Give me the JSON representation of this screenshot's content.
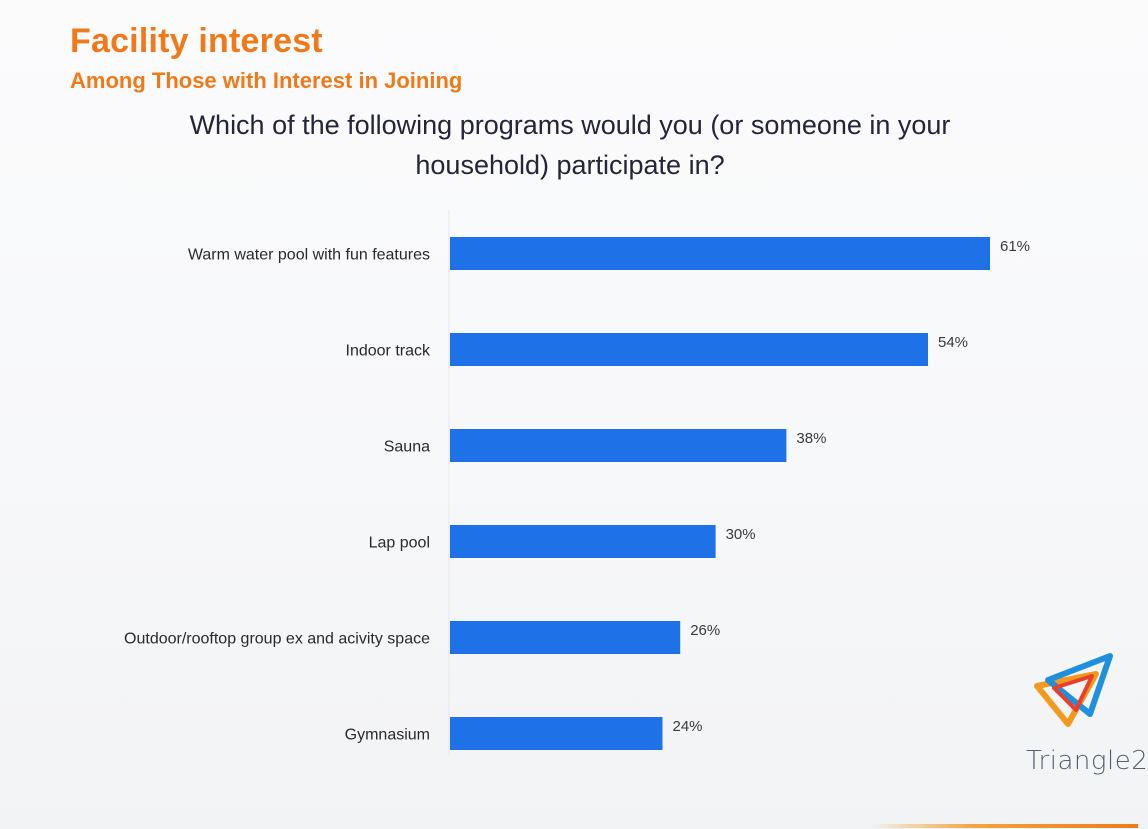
{
  "header": {
    "title": "Facility interest",
    "subtitle": "Among Those with Interest in Joining"
  },
  "question": "Which of the following programs would you (or someone in your household) participate in?",
  "colors": {
    "bar": "#1f71e7",
    "accent": "#f07a1a"
  },
  "chart_data": {
    "type": "bar",
    "orientation": "horizontal",
    "title": "Which of the following programs would you (or someone in your household) participate in?",
    "categories": [
      "Warm water pool with fun features",
      "Indoor track",
      "Sauna",
      "Lap pool",
      "Outdoor/rooftop group ex and acivity space",
      "Gymnasium"
    ],
    "values": [
      61,
      54,
      38,
      30,
      26,
      24
    ],
    "value_labels": [
      "61%",
      "54%",
      "38%",
      "30%",
      "26%",
      "24%"
    ],
    "unit": "%",
    "xlim": [
      0,
      61
    ],
    "grid": false,
    "legend": "none"
  },
  "logo": {
    "text": "Triangle2",
    "icon": "triangle2-logo-icon"
  }
}
